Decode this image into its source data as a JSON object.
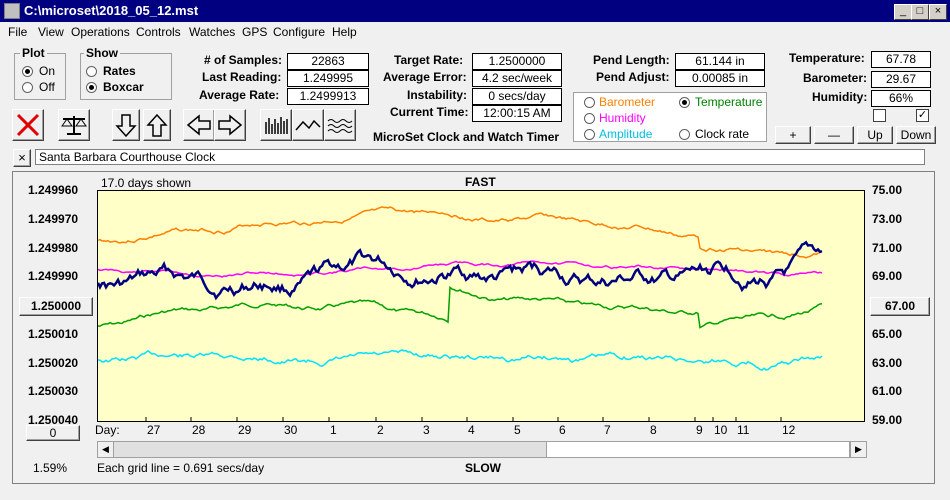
{
  "window": {
    "title": "C:\\microset\\2018_05_12.mst"
  },
  "menu": [
    "File",
    "View",
    "Operations",
    "Controls",
    "Watches",
    "GPS",
    "Configure",
    "Help"
  ],
  "plot_group": {
    "label": "Plot",
    "on": "On",
    "off": "Off"
  },
  "show_group": {
    "label": "Show",
    "rates": "Rates",
    "boxcar": "Boxcar"
  },
  "stats": {
    "samples_label": "# of Samples:",
    "samples": "22863",
    "last_label": "Last Reading:",
    "last": "1.249995",
    "avg_label": "Average Rate:",
    "avg": "1.2499913"
  },
  "rates": {
    "target_label": "Target Rate:",
    "target": "1.2500000",
    "error_label": "Average Error:",
    "error": "4.2 sec/week",
    "instab_label": "Instability:",
    "instab": "0 secs/day",
    "time_label": "Current Time:",
    "time": "12:00:15 AM"
  },
  "app_name": "MicroSet Clock and Watch Timer",
  "pendulum": {
    "length_label": "Pend Length:",
    "length": "61.144 in",
    "adjust_label": "Pend Adjust:",
    "adjust": "0.00085 in"
  },
  "sensors": {
    "temp_label": "Temperature:",
    "temp": "67.78",
    "baro_label": "Barometer:",
    "baro": "29.67",
    "hum_label": "Humidity:",
    "hum": "66%"
  },
  "options": {
    "barometer": "Barometer",
    "temperature": "Temperature",
    "humidity": "Humidity",
    "amplitude": "Amplitude",
    "clockrate": "Clock rate"
  },
  "step_buttons": {
    "plus": "+",
    "minus": "—",
    "up": "Up",
    "down": "Down"
  },
  "clock_name": "Santa Barbara Courthouse Clock",
  "close_x": "×",
  "graph": {
    "days_shown": "17.0 days shown",
    "top": "FAST",
    "bottom": "SLOW",
    "left_axis": [
      "1.249960",
      "1.249970",
      "1.249980",
      "1.249990",
      "1.250000",
      "1.250010",
      "1.250020",
      "1.250030",
      "1.250040"
    ],
    "right_axis": [
      "75.00",
      "73.00",
      "71.00",
      "69.00",
      "67.00",
      "65.00",
      "63.00",
      "61.00",
      "59.00"
    ],
    "center_left": "1.250000",
    "center_right": "67.00",
    "day_label": "Day:",
    "days": [
      "27",
      "28",
      "29",
      "30",
      "1",
      "2",
      "3",
      "4",
      "5",
      "6",
      "7",
      "8",
      "9",
      "10",
      "11",
      "12"
    ],
    "zero_button": "0",
    "percent": "1.59%",
    "grid_note": "Each grid line = 0.691 secs/day",
    "colors": {
      "temperature": "#ff8000",
      "humidity": "#ff00ff",
      "barometer": "#00a000",
      "amplitude": "#00e0ff",
      "rate": "#000080",
      "background": "#ffffc8"
    }
  }
}
